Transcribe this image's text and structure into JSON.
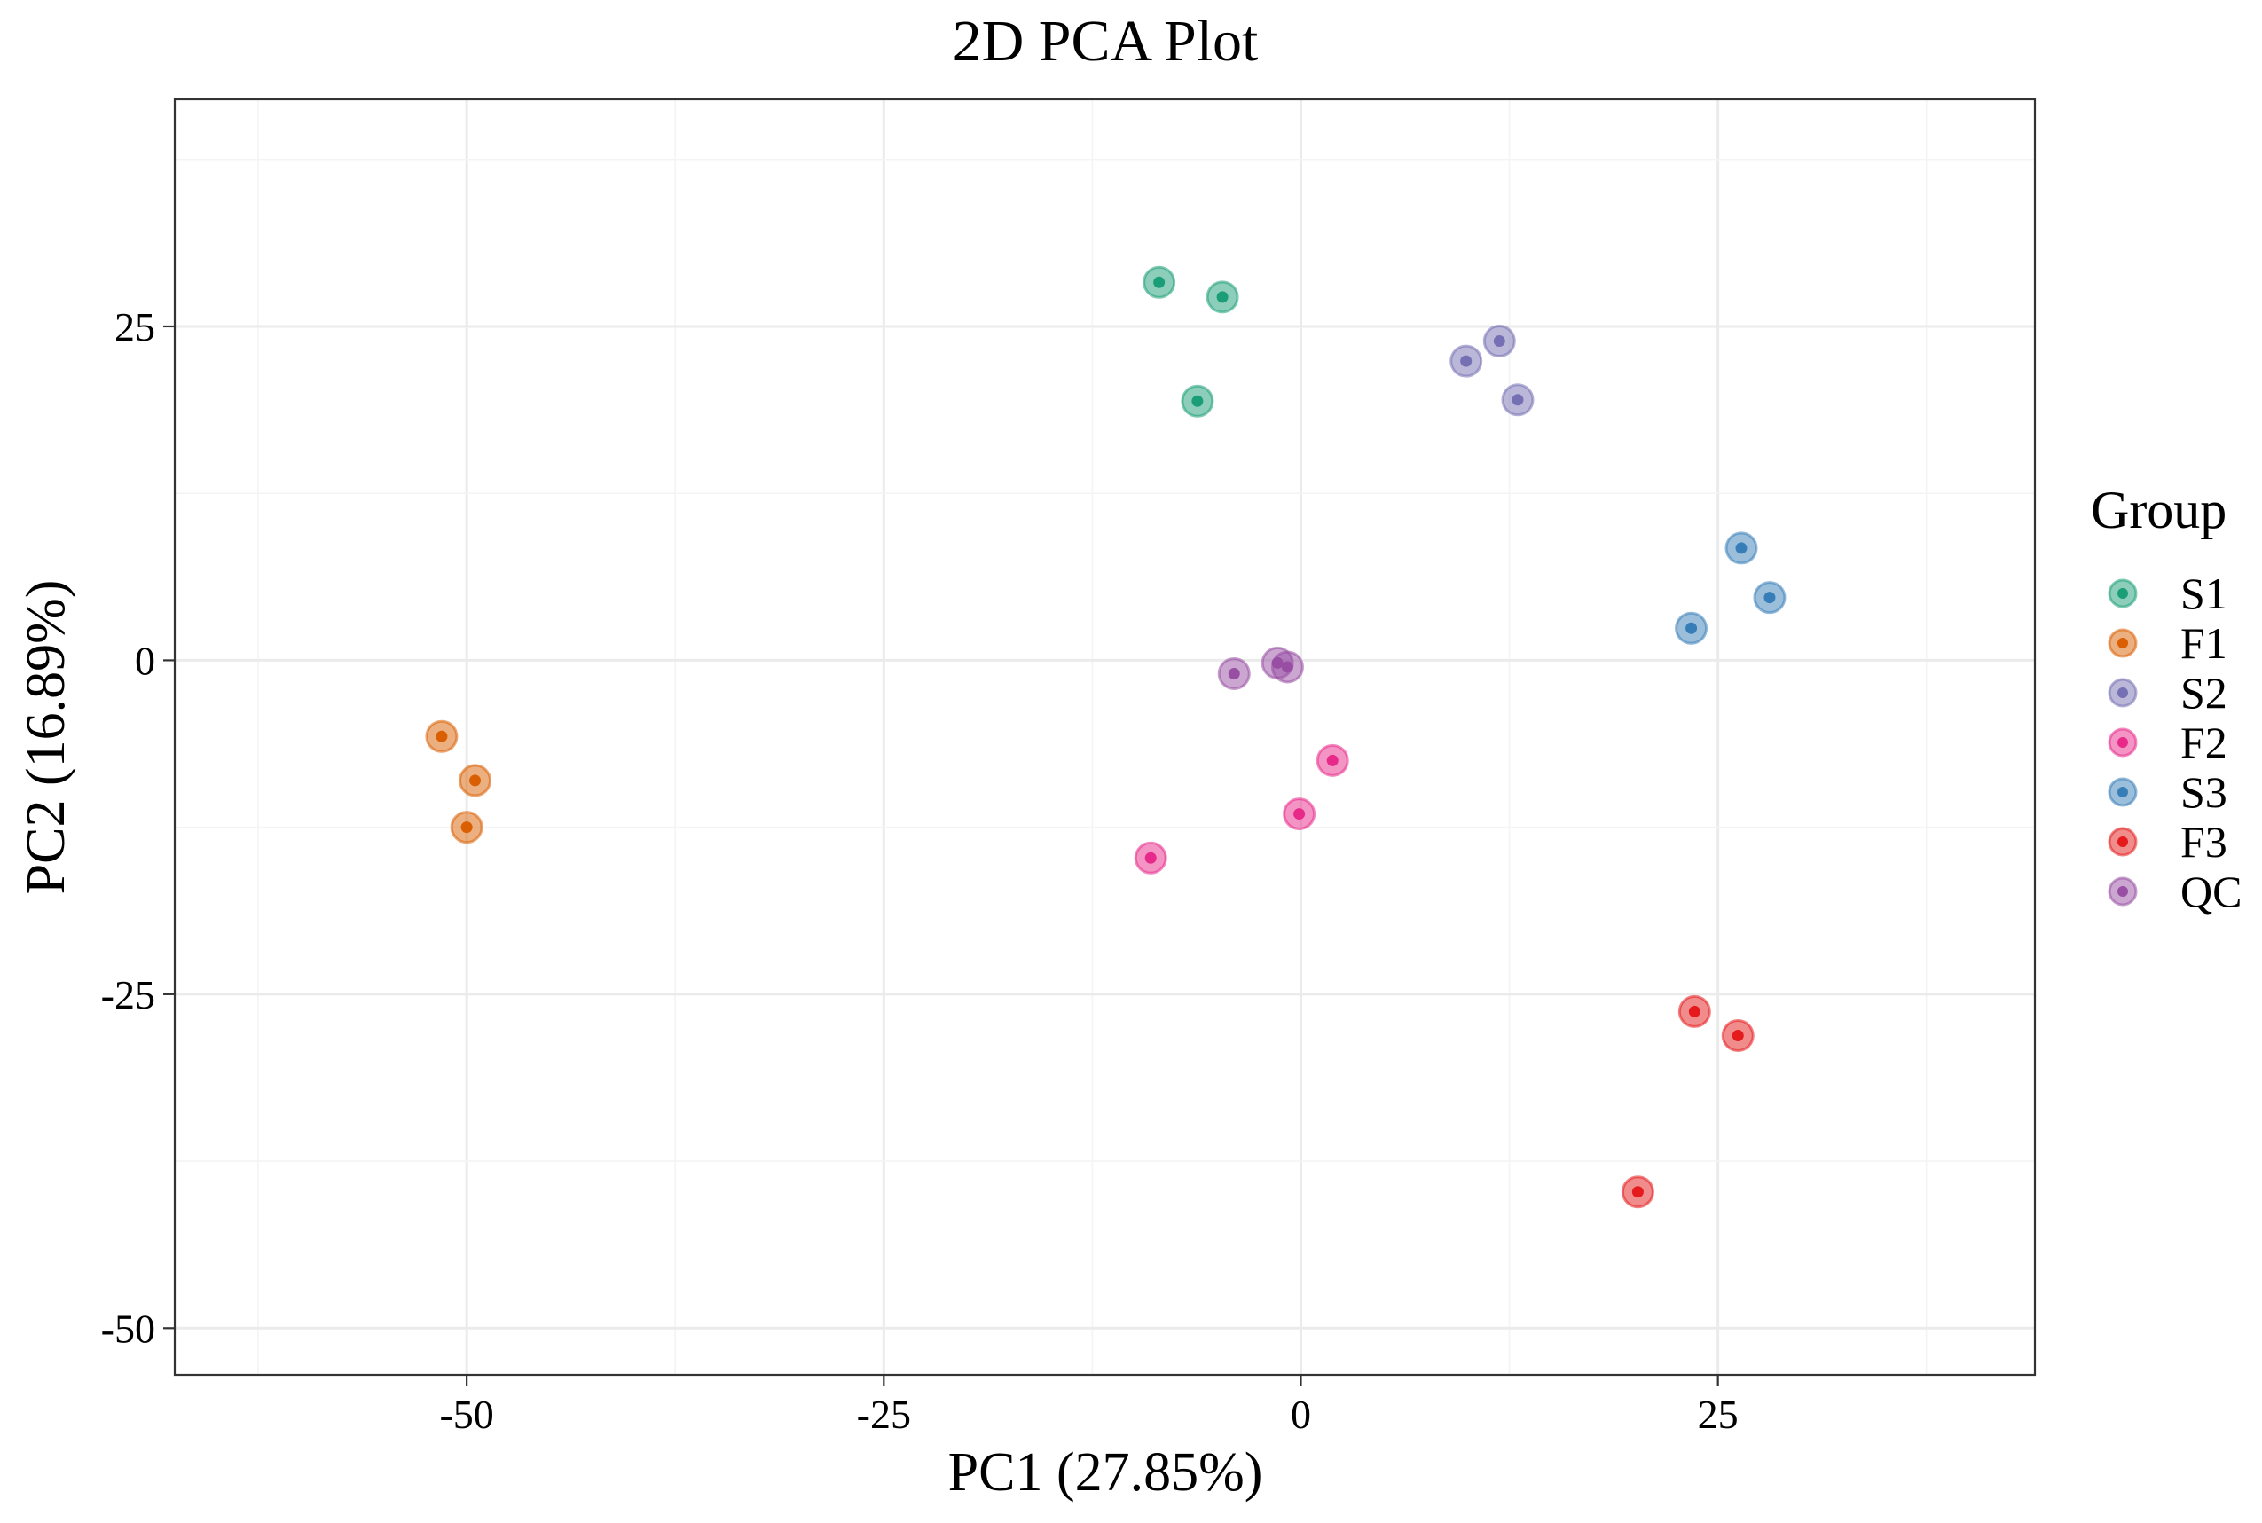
{
  "chart_data": {
    "type": "scatter",
    "title": "2D PCA Plot",
    "xlabel": "PC1 (27.85%)",
    "ylabel": "PC2 (16.89%)",
    "xlim": [
      -67.5,
      44
    ],
    "ylim": [
      -53.5,
      42
    ],
    "xticks": [
      -50,
      -25,
      0,
      25
    ],
    "xtick_labels": [
      "-50",
      "-25",
      "0",
      "25"
    ],
    "yticks": [
      -50,
      -25,
      0,
      25
    ],
    "ytick_labels": [
      "-50",
      "-25",
      "0",
      "25"
    ],
    "grid": true,
    "legend": {
      "title": "Group",
      "position": "right"
    },
    "series": [
      {
        "name": "S1",
        "color": "#1b9e77",
        "points": [
          [
            -8.5,
            28.3
          ],
          [
            -4.7,
            27.2
          ],
          [
            -6.2,
            19.4
          ]
        ]
      },
      {
        "name": "F1",
        "color": "#d95f02",
        "points": [
          [
            -51.5,
            -5.7
          ],
          [
            -49.5,
            -9.0
          ],
          [
            -50.0,
            -12.5
          ]
        ]
      },
      {
        "name": "S2",
        "color": "#7570b3",
        "points": [
          [
            9.9,
            22.4
          ],
          [
            11.9,
            23.9
          ],
          [
            13.0,
            19.5
          ]
        ]
      },
      {
        "name": "F2",
        "color": "#e7298a",
        "points": [
          [
            1.9,
            -7.5
          ],
          [
            -0.1,
            -11.5
          ],
          [
            -9.0,
            -14.8
          ]
        ]
      },
      {
        "name": "S3",
        "color": "#377eb8",
        "points": [
          [
            26.4,
            8.4
          ],
          [
            28.1,
            4.7
          ],
          [
            23.4,
            2.4
          ]
        ]
      },
      {
        "name": "F3",
        "color": "#e41a1c",
        "points": [
          [
            23.6,
            -26.3
          ],
          [
            26.2,
            -28.1
          ],
          [
            20.2,
            -39.8
          ]
        ]
      },
      {
        "name": "QC",
        "color": "#984ea3",
        "points": [
          [
            -4.0,
            -1.0
          ],
          [
            -1.4,
            -0.2
          ],
          [
            -0.8,
            -0.5
          ]
        ]
      }
    ]
  }
}
